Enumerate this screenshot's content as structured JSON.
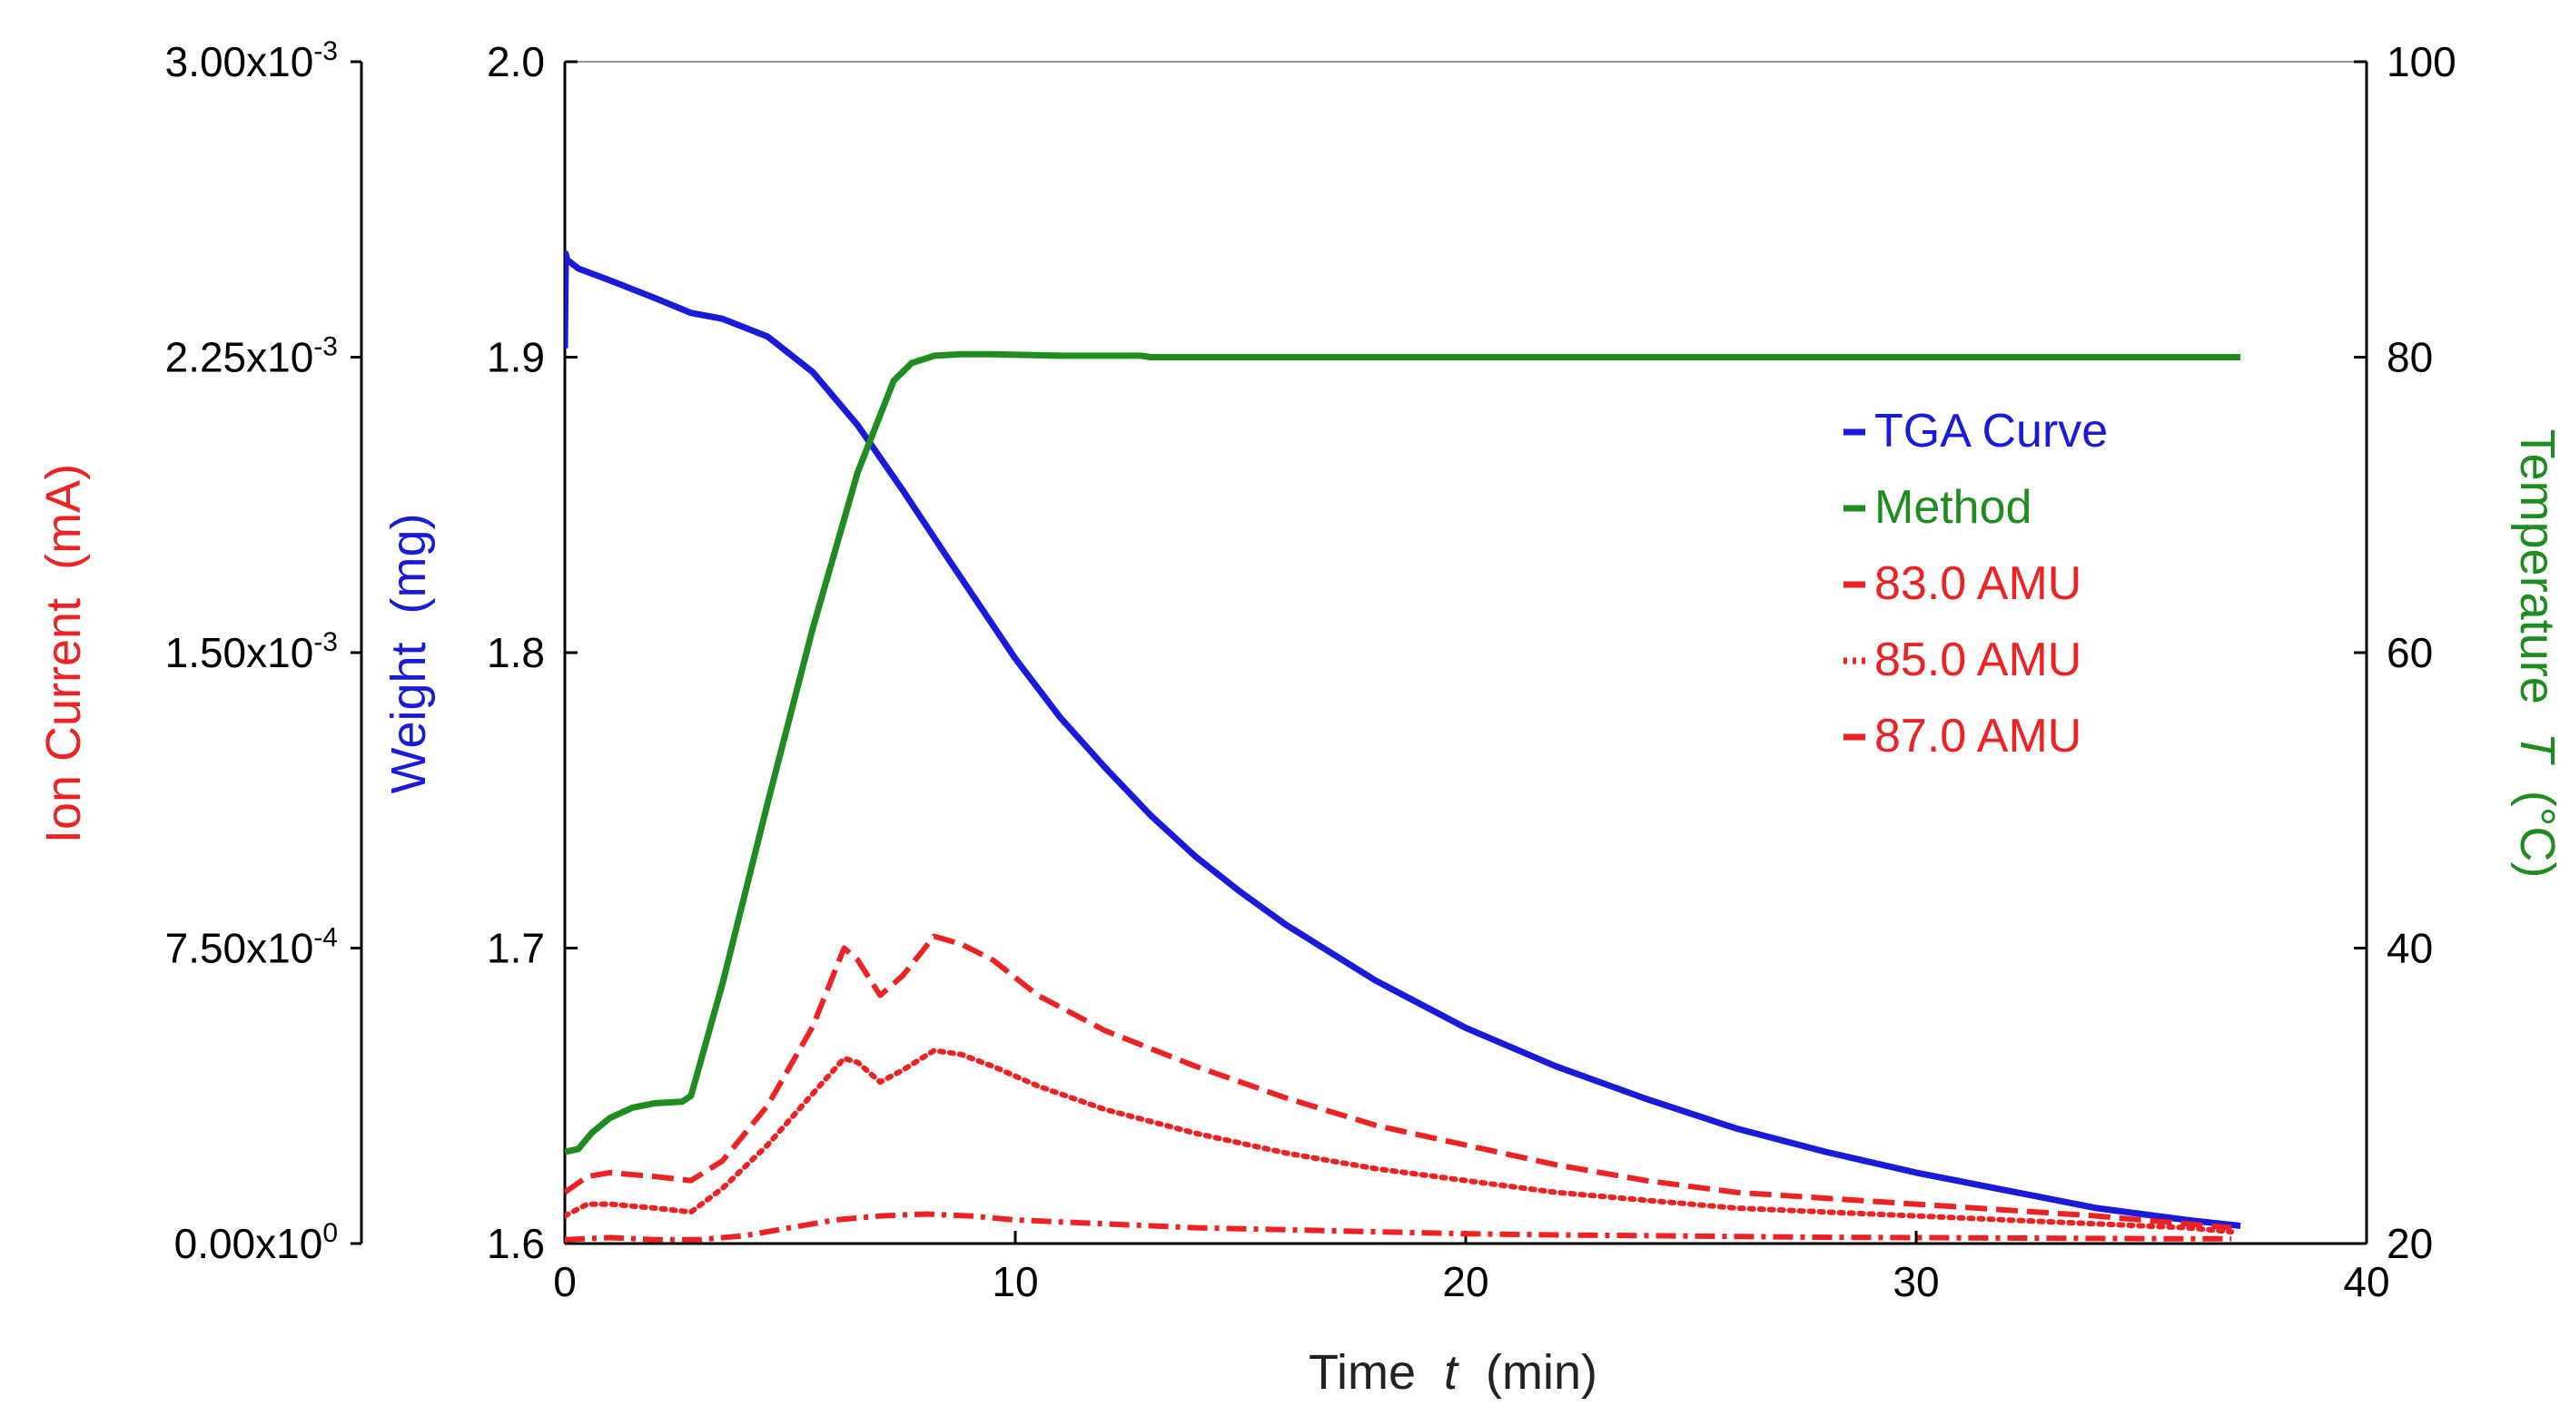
{
  "chart_data": {
    "type": "line",
    "title": "",
    "xlabel": "Time",
    "xlabel_symbol": "t",
    "xlabel_unit": "(min)",
    "xlim": [
      0,
      40
    ],
    "x_ticks": [
      "0",
      "10",
      "20",
      "30",
      "40"
    ],
    "x_tick_values": [
      0,
      10,
      20,
      30,
      40
    ],
    "grid": false,
    "legend_position": "right",
    "axes": {
      "ion_current": {
        "label": "Ion Current",
        "unit": "(mA)",
        "color": "#ee2222",
        "ylim": [
          0,
          0.003
        ],
        "tick_values": [
          0,
          0.00075,
          0.0015,
          0.00225,
          0.003
        ],
        "ticks": [
          {
            "mant": "0.00x10",
            "exp": "0"
          },
          {
            "mant": "7.50x10",
            "exp": "-4"
          },
          {
            "mant": "1.50x10",
            "exp": "-3"
          },
          {
            "mant": "2.25x10",
            "exp": "-3"
          },
          {
            "mant": "3.00x10",
            "exp": "-3"
          }
        ]
      },
      "weight": {
        "label": "Weight",
        "unit": "(mg)",
        "color": "#1a1adb",
        "ylim": [
          1.6,
          2.0
        ],
        "tick_values": [
          1.6,
          1.7,
          1.8,
          1.9,
          2.0
        ],
        "ticks": [
          "1.6",
          "1.7",
          "1.8",
          "1.9",
          "2.0"
        ]
      },
      "temperature": {
        "label": "Temperature",
        "symbol": "T",
        "unit": "(°C)",
        "color": "#1e8c1e",
        "ylim": [
          20,
          100
        ],
        "tick_values": [
          20,
          40,
          60,
          80,
          100
        ],
        "ticks": [
          "20",
          "40",
          "60",
          "80",
          "100"
        ]
      }
    },
    "series": [
      {
        "name": "TGA Curve",
        "axis": "weight",
        "color": "#1a1adb",
        "style": "solid",
        "x": [
          0,
          0.02,
          0.05,
          0.3,
          1,
          2,
          2.8,
          3.5,
          4.5,
          5.5,
          6.5,
          7.5,
          8.5,
          10,
          11,
          12,
          13,
          14,
          15,
          16,
          18,
          20,
          22,
          24,
          26,
          28,
          30,
          32,
          34,
          35,
          36,
          37.2
        ],
        "values": [
          1.903,
          1.935,
          1.933,
          1.93,
          1.926,
          1.92,
          1.915,
          1.913,
          1.907,
          1.895,
          1.877,
          1.855,
          1.832,
          1.798,
          1.778,
          1.761,
          1.745,
          1.731,
          1.719,
          1.708,
          1.689,
          1.673,
          1.66,
          1.649,
          1.639,
          1.631,
          1.624,
          1.618,
          1.612,
          1.61,
          1.608,
          1.606
        ]
      },
      {
        "name": "Method",
        "axis": "temperature",
        "color": "#1e8c1e",
        "style": "solid",
        "x": [
          0,
          0.3,
          0.6,
          1,
          1.5,
          2,
          2.6,
          2.8,
          3.5,
          4.5,
          5.5,
          6.5,
          7.3,
          7.7,
          8.2,
          8.8,
          9.5,
          11,
          12.8,
          13,
          20,
          30,
          37.2
        ],
        "values": [
          26.2,
          26.4,
          27.5,
          28.5,
          29.2,
          29.5,
          29.6,
          30.0,
          37.6,
          49.8,
          61.6,
          72.2,
          78.4,
          79.6,
          80.1,
          80.2,
          80.2,
          80.1,
          80.1,
          80.0,
          80.0,
          80.0,
          80.0
        ]
      },
      {
        "name": "83.0 AMU",
        "axis": "ion_current",
        "color": "#ee2222",
        "style": "dashed",
        "x": [
          0,
          0.5,
          1,
          2,
          2.8,
          3.5,
          4.5,
          5.5,
          6.2,
          6.5,
          7,
          7.5,
          8.2,
          8.8,
          9.5,
          10.5,
          12,
          14,
          16,
          18,
          20,
          22,
          24,
          26,
          28,
          30,
          32,
          34,
          35,
          36,
          37
        ],
        "values": [
          0.00013,
          0.00017,
          0.00018,
          0.00017,
          0.00016,
          0.00021,
          0.00035,
          0.00055,
          0.00075,
          0.00072,
          0.00063,
          0.00068,
          0.00078,
          0.00076,
          0.00072,
          0.00063,
          0.00054,
          0.00045,
          0.00037,
          0.0003,
          0.00025,
          0.0002,
          0.00016,
          0.00013,
          0.000115,
          0.0001,
          8.5e-05,
          7e-05,
          6e-05,
          5e-05,
          4e-05
        ]
      },
      {
        "name": "85.0 AMU",
        "axis": "ion_current",
        "color": "#ee2222",
        "style": "dotted",
        "x": [
          0,
          0.5,
          1,
          2,
          2.8,
          3.5,
          4.5,
          5.5,
          6.2,
          6.5,
          7,
          7.5,
          8.2,
          8.8,
          9.5,
          10.5,
          12,
          14,
          16,
          18,
          20,
          22,
          24,
          26,
          28,
          30,
          32,
          34,
          36,
          37
        ],
        "values": [
          7e-05,
          0.0001,
          0.0001,
          9e-05,
          8e-05,
          0.00014,
          0.00025,
          0.00038,
          0.00047,
          0.00046,
          0.00041,
          0.00044,
          0.00049,
          0.00048,
          0.00045,
          0.0004,
          0.00034,
          0.00028,
          0.00023,
          0.00019,
          0.00016,
          0.00013,
          0.00011,
          9e-05,
          8e-05,
          7e-05,
          6e-05,
          5e-05,
          4e-05,
          3e-05
        ]
      },
      {
        "name": "87.0 AMU",
        "axis": "ion_current",
        "color": "#ee2222",
        "style": "dashdot",
        "x": [
          0,
          1,
          2,
          3,
          4,
          5,
          6,
          7,
          8,
          9,
          10,
          12,
          14,
          16,
          18,
          20,
          22,
          24,
          26,
          28,
          30,
          32,
          34,
          36,
          37
        ],
        "values": [
          1e-05,
          1.5e-05,
          1e-05,
          1e-05,
          2e-05,
          4e-05,
          6e-05,
          7e-05,
          7.5e-05,
          7e-05,
          6e-05,
          5e-05,
          4e-05,
          3.5e-05,
          3e-05,
          2.5e-05,
          2.2e-05,
          2e-05,
          1.8e-05,
          1.6e-05,
          1.5e-05,
          1.4e-05,
          1.3e-05,
          1.2e-05,
          1.2e-05
        ]
      }
    ]
  }
}
